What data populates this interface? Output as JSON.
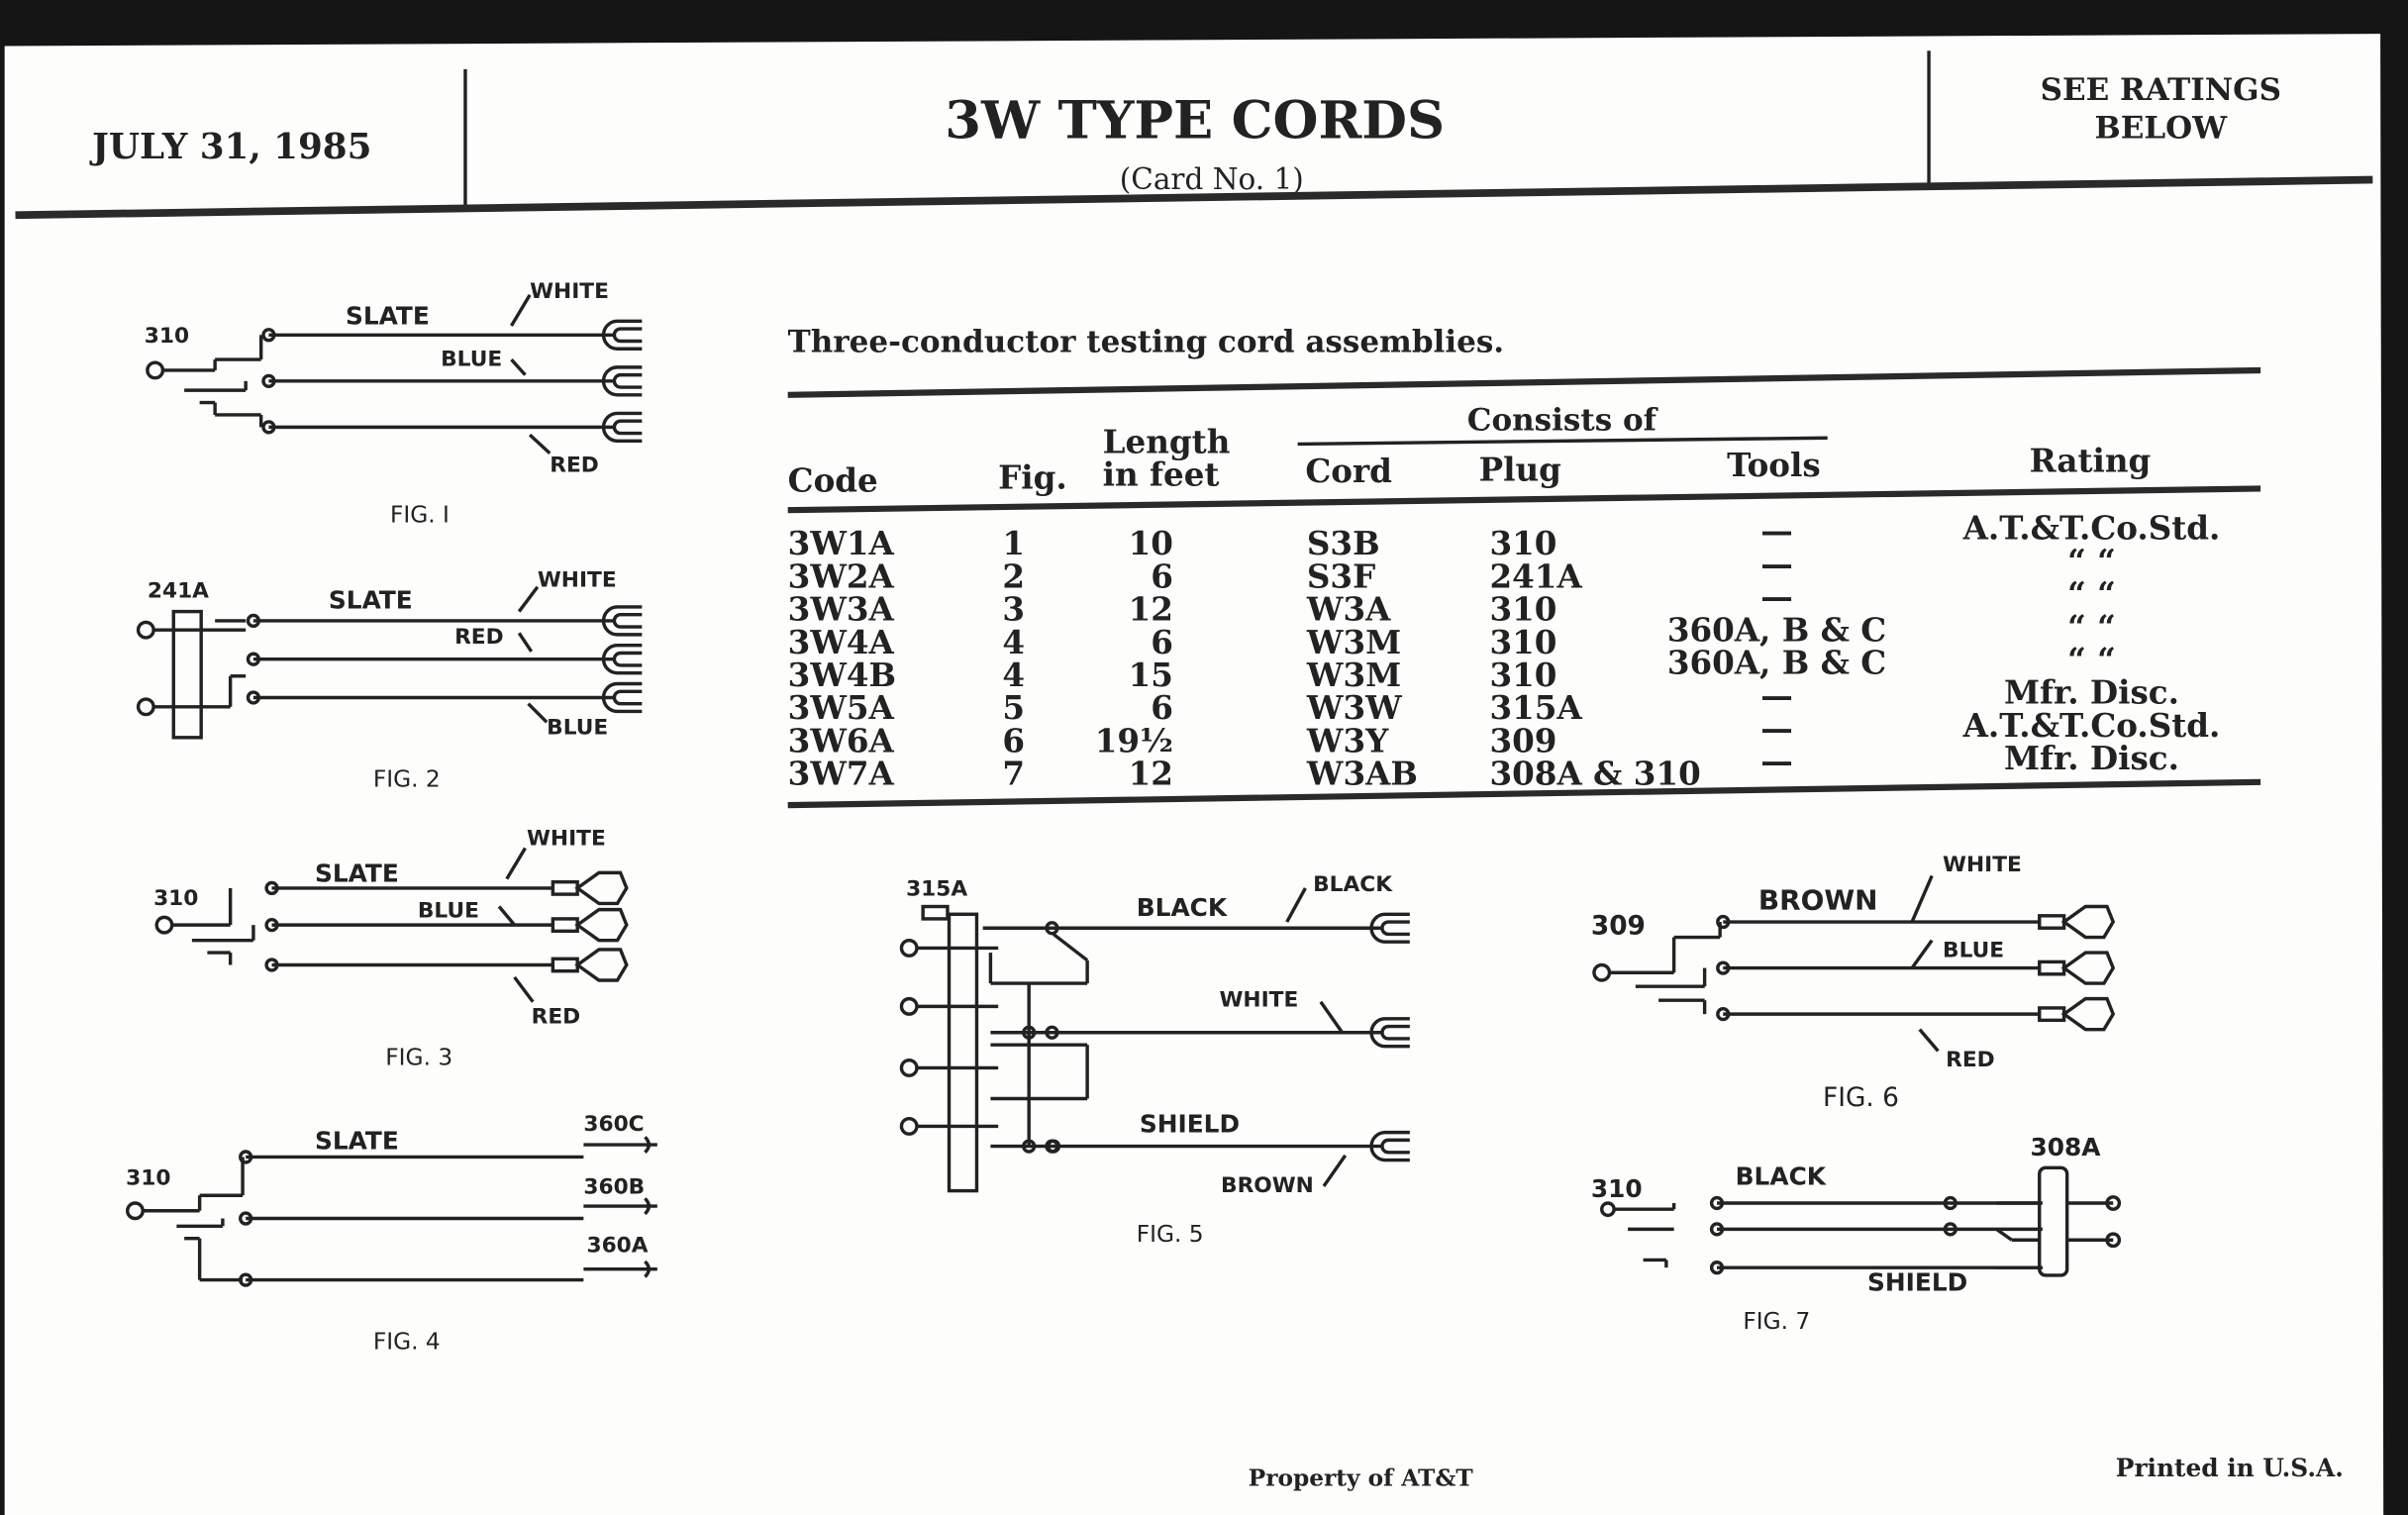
{
  "header": {
    "date": "JULY 31, 1985",
    "title": "3W TYPE CORDS",
    "subtitle": "(Card No. 1)",
    "rating_note_line1": "SEE RATINGS",
    "rating_note_line2": "BELOW"
  },
  "table": {
    "caption": "Three-conductor testing cord assemblies.",
    "group_header": "Consists of",
    "columns": [
      "Code",
      "Fig.",
      "Length",
      "in feet",
      "Cord",
      "Plug",
      "Tools",
      "Rating"
    ],
    "rows": [
      {
        "code": "3W1A",
        "fig": "1",
        "length": "10",
        "cord": "S3B",
        "plug": "310",
        "tools": "—",
        "rating": "A.T.&T.Co.Std."
      },
      {
        "code": "3W2A",
        "fig": "2",
        "length": "6",
        "cord": "S3F",
        "plug": "241A",
        "tools": "—",
        "rating": "“        “"
      },
      {
        "code": "3W3A",
        "fig": "3",
        "length": "12",
        "cord": "W3A",
        "plug": "310",
        "tools": "—",
        "rating": "“        “"
      },
      {
        "code": "3W4A",
        "fig": "4",
        "length": "6",
        "cord": "W3M",
        "plug": "310",
        "tools": "360A, B & C",
        "rating": "“        “"
      },
      {
        "code": "3W4B",
        "fig": "4",
        "length": "15",
        "cord": "W3M",
        "plug": "310",
        "tools": "360A, B & C",
        "rating": "“        “"
      },
      {
        "code": "3W5A",
        "fig": "5",
        "length": "6",
        "cord": "W3W",
        "plug": "315A",
        "tools": "—",
        "rating": "Mfr. Disc."
      },
      {
        "code": "3W6A",
        "fig": "6",
        "length": "19½",
        "cord": "W3Y",
        "plug": "309",
        "tools": "—",
        "rating": "A.T.&T.Co.Std."
      },
      {
        "code": "3W7A",
        "fig": "7",
        "length": "12",
        "cord": "W3AB",
        "plug": "308A & 310",
        "tools": "—",
        "rating": "Mfr. Disc."
      }
    ]
  },
  "figures": {
    "fig1": {
      "caption": "FIG. I",
      "plug": "310",
      "labels": [
        "SLATE",
        "WHITE",
        "BLUE",
        "RED"
      ]
    },
    "fig2": {
      "caption": "FIG. 2",
      "plug": "241A",
      "labels": [
        "SLATE",
        "WHITE",
        "RED",
        "BLUE"
      ]
    },
    "fig3": {
      "caption": "FIG. 3",
      "plug": "310",
      "labels": [
        "SLATE",
        "WHITE",
        "BLUE",
        "RED"
      ]
    },
    "fig4": {
      "caption": "FIG. 4",
      "plug": "310",
      "labels": [
        "SLATE",
        "360C",
        "360B",
        "360A"
      ]
    },
    "fig5": {
      "caption": "FIG. 5",
      "plug": "315A",
      "labels": [
        "BLACK",
        "BLACK",
        "WHITE",
        "SHIELD",
        "BROWN"
      ]
    },
    "fig6": {
      "caption": "FIG. 6",
      "plug": "309",
      "labels": [
        "BROWN",
        "WHITE",
        "BLUE",
        "RED"
      ]
    },
    "fig7": {
      "caption": "FIG. 7",
      "plug": "310",
      "plug2": "308A",
      "labels": [
        "BLACK",
        "SHIELD"
      ]
    }
  },
  "footer": {
    "property": "Property of AT&T",
    "printed": "Printed in U.S.A."
  }
}
